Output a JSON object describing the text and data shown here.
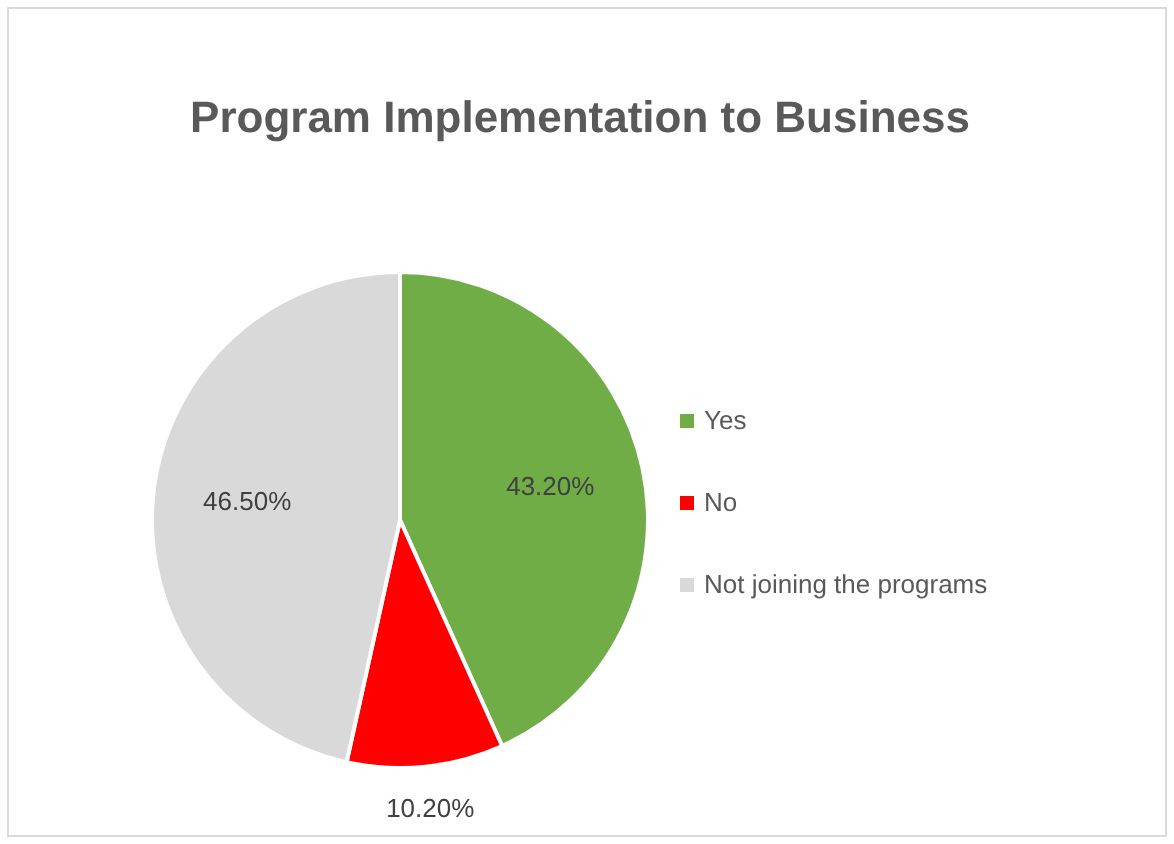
{
  "chart_data": {
    "type": "pie",
    "title": "Program Implementation to Business",
    "categories": [
      "Yes",
      "No",
      "Not joining the programs"
    ],
    "values": [
      43.2,
      10.2,
      46.5
    ],
    "value_labels": [
      "43.20%",
      "10.20%",
      "46.50%"
    ],
    "colors": [
      "#70ad47",
      "#ff0000",
      "#d9d9d9"
    ],
    "legend": "right"
  }
}
